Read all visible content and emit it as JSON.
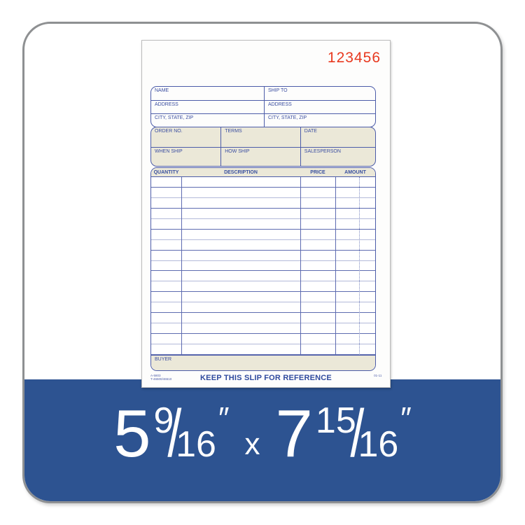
{
  "form": {
    "serial_number": "123456",
    "bill_section": {
      "left": [
        "NAME",
        "ADDRESS",
        "CITY, STATE, ZIP"
      ],
      "right": [
        "SHIP TO",
        "ADDRESS",
        "CITY, STATE, ZIP"
      ]
    },
    "order_section": {
      "row1": [
        "ORDER NO.",
        "TERMS",
        "DATE"
      ],
      "row2": [
        "WHEN SHIP",
        "HOW SHIP",
        "SALESPERSON"
      ]
    },
    "table": {
      "headers": [
        "QUANTITY",
        "DESCRIPTION",
        "PRICE",
        "AMOUNT"
      ],
      "row_count": 17
    },
    "buyer_label": "BUYER",
    "footer": {
      "left_line1": "A-5803",
      "left_line2": "T-46500/46510",
      "center": "KEEP THIS SLIP FOR REFERENCE",
      "right": "01-11"
    }
  },
  "dimensions_banner": {
    "width_whole": "5",
    "width_frac_num": "9",
    "width_frac_den": "16",
    "separator": "x",
    "height_whole": "7",
    "height_frac_num": "15",
    "height_frac_den": "16",
    "unit_mark": "″"
  },
  "colors": {
    "banner_blue": "#2d5391",
    "form_line_blue": "#4c5ca9",
    "header_tan": "#ebe8d8",
    "serial_red": "#e8391f",
    "card_border_gray": "#8e9092"
  }
}
